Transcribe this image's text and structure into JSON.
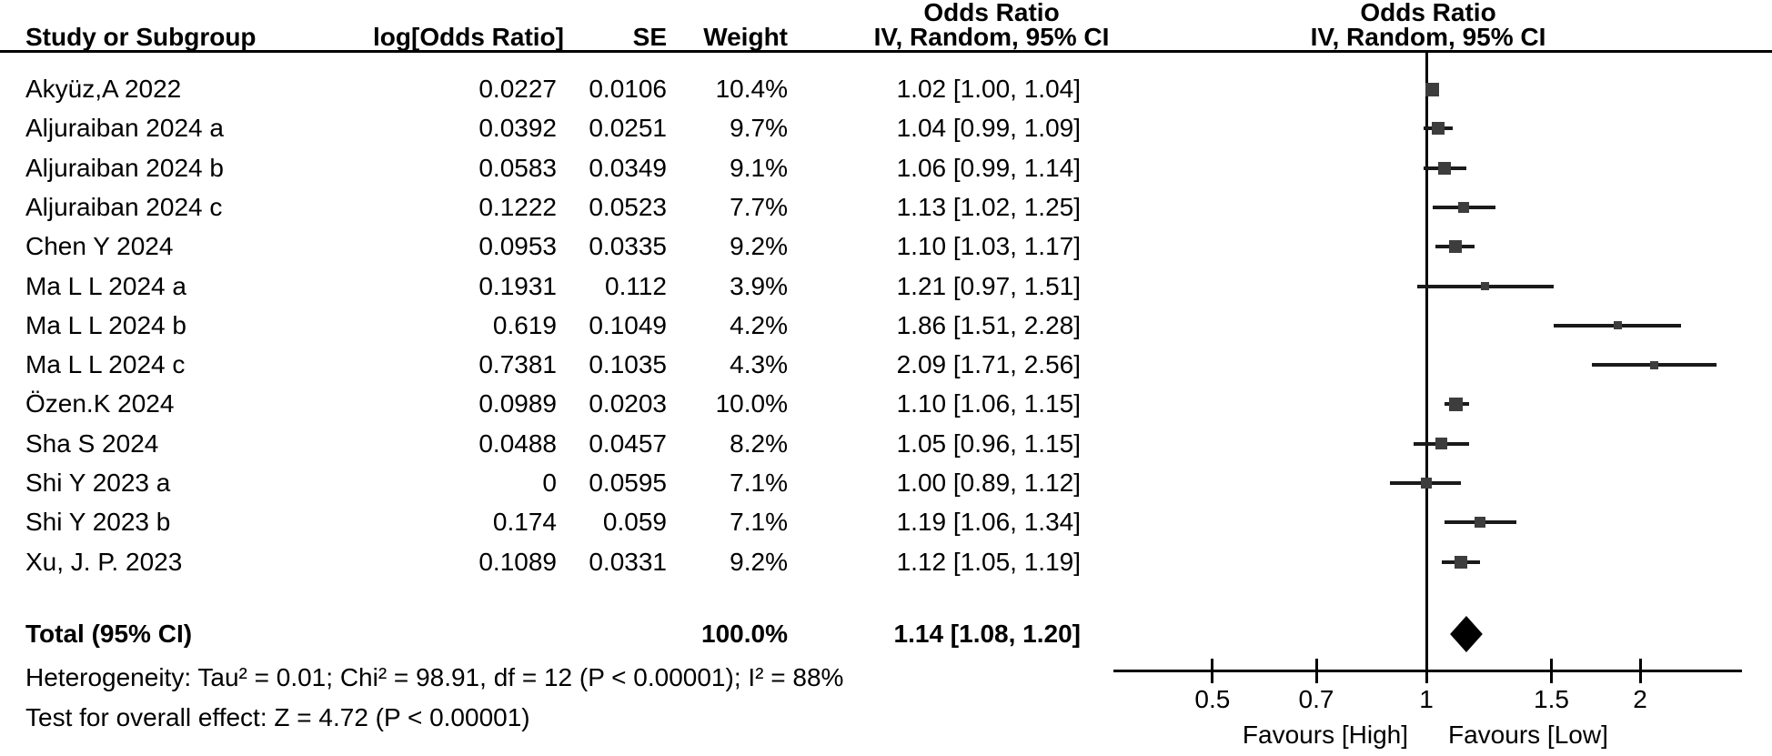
{
  "table_headers": {
    "study": "Study or Subgroup",
    "log_or": "log[Odds Ratio]",
    "se": "SE",
    "weight": "Weight",
    "or_col_line1": "Odds Ratio",
    "or_col_line2": "IV, Random, 95% CI",
    "plot_col_line1": "Odds Ratio",
    "plot_col_line2": "IV, Random, 95% CI"
  },
  "total_row": {
    "label": "Total (95% CI)",
    "weight": "100.0%",
    "ci_text": "1.14 [1.08, 1.20]",
    "or": 1.14,
    "lo": 1.08,
    "hi": 1.2
  },
  "footer": {
    "heterogeneity": "Heterogeneity: Tau² = 0.01; Chi² = 98.91, df = 12 (P < 0.00001); I² = 88%",
    "overall_effect": "Test for overall effect: Z = 4.72 (P < 0.00001)"
  },
  "chart_data": {
    "type": "forest",
    "effect_measure": "Odds Ratio",
    "model": "IV, Random, 95% CI",
    "x_scale": "log",
    "axis_ticks": [
      0.5,
      0.7,
      1,
      1.5,
      2
    ],
    "axis_tick_labels": [
      "0.5",
      "0.7",
      "1",
      "1.5",
      "2"
    ],
    "axis_range": [
      0.36,
      2.78
    ],
    "favours_left": "Favours [High]",
    "favours_right": "Favours [Low]",
    "studies": [
      {
        "name": "Akyüz,A 2022",
        "log_or": "0.0227",
        "se": "0.0106",
        "weight_text": "10.4%",
        "weight": 10.4,
        "ci_text": "1.02 [1.00, 1.04]",
        "or": 1.02,
        "lo": 1.0,
        "hi": 1.04
      },
      {
        "name": "Aljuraiban 2024 a",
        "log_or": "0.0392",
        "se": "0.0251",
        "weight_text": "9.7%",
        "weight": 9.7,
        "ci_text": "1.04 [0.99, 1.09]",
        "or": 1.04,
        "lo": 0.99,
        "hi": 1.09
      },
      {
        "name": "Aljuraiban 2024 b",
        "log_or": "0.0583",
        "se": "0.0349",
        "weight_text": "9.1%",
        "weight": 9.1,
        "ci_text": "1.06 [0.99, 1.14]",
        "or": 1.06,
        "lo": 0.99,
        "hi": 1.14
      },
      {
        "name": "Aljuraiban 2024 c",
        "log_or": "0.1222",
        "se": "0.0523",
        "weight_text": "7.7%",
        "weight": 7.7,
        "ci_text": "1.13 [1.02, 1.25]",
        "or": 1.13,
        "lo": 1.02,
        "hi": 1.25
      },
      {
        "name": "Chen Y 2024",
        "log_or": "0.0953",
        "se": "0.0335",
        "weight_text": "9.2%",
        "weight": 9.2,
        "ci_text": "1.10 [1.03, 1.17]",
        "or": 1.1,
        "lo": 1.03,
        "hi": 1.17
      },
      {
        "name": "Ma L L 2024 a",
        "log_or": "0.1931",
        "se": "0.112",
        "weight_text": "3.9%",
        "weight": 3.9,
        "ci_text": "1.21 [0.97, 1.51]",
        "or": 1.21,
        "lo": 0.97,
        "hi": 1.51
      },
      {
        "name": "Ma L L 2024 b",
        "log_or": "0.619",
        "se": "0.1049",
        "weight_text": "4.2%",
        "weight": 4.2,
        "ci_text": "1.86 [1.51, 2.28]",
        "or": 1.86,
        "lo": 1.51,
        "hi": 2.28
      },
      {
        "name": "Ma L L 2024 c",
        "log_or": "0.7381",
        "se": "0.1035",
        "weight_text": "4.3%",
        "weight": 4.3,
        "ci_text": "2.09 [1.71, 2.56]",
        "or": 2.09,
        "lo": 1.71,
        "hi": 2.56
      },
      {
        "name": "Özen.K 2024",
        "log_or": "0.0989",
        "se": "0.0203",
        "weight_text": "10.0%",
        "weight": 10.0,
        "ci_text": "1.10 [1.06, 1.15]",
        "or": 1.1,
        "lo": 1.06,
        "hi": 1.15
      },
      {
        "name": "Sha S 2024",
        "log_or": "0.0488",
        "se": "0.0457",
        "weight_text": "8.2%",
        "weight": 8.2,
        "ci_text": "1.05 [0.96, 1.15]",
        "or": 1.05,
        "lo": 0.96,
        "hi": 1.15
      },
      {
        "name": "Shi Y 2023 a",
        "log_or": "0",
        "se": "0.0595",
        "weight_text": "7.1%",
        "weight": 7.1,
        "ci_text": "1.00 [0.89, 1.12]",
        "or": 1.0,
        "lo": 0.89,
        "hi": 1.12
      },
      {
        "name": "Shi Y 2023 b",
        "log_or": "0.174",
        "se": "0.059",
        "weight_text": "7.1%",
        "weight": 7.1,
        "ci_text": "1.19 [1.06, 1.34]",
        "or": 1.19,
        "lo": 1.06,
        "hi": 1.34
      },
      {
        "name": "Xu, J. P. 2023",
        "log_or": "0.1089",
        "se": "0.0331",
        "weight_text": "9.2%",
        "weight": 9.2,
        "ci_text": "1.12 [1.05, 1.19]",
        "or": 1.12,
        "lo": 1.05,
        "hi": 1.19
      }
    ],
    "summary": {
      "or": 1.14,
      "lo": 1.08,
      "hi": 1.2,
      "weight": "100.0%"
    }
  }
}
